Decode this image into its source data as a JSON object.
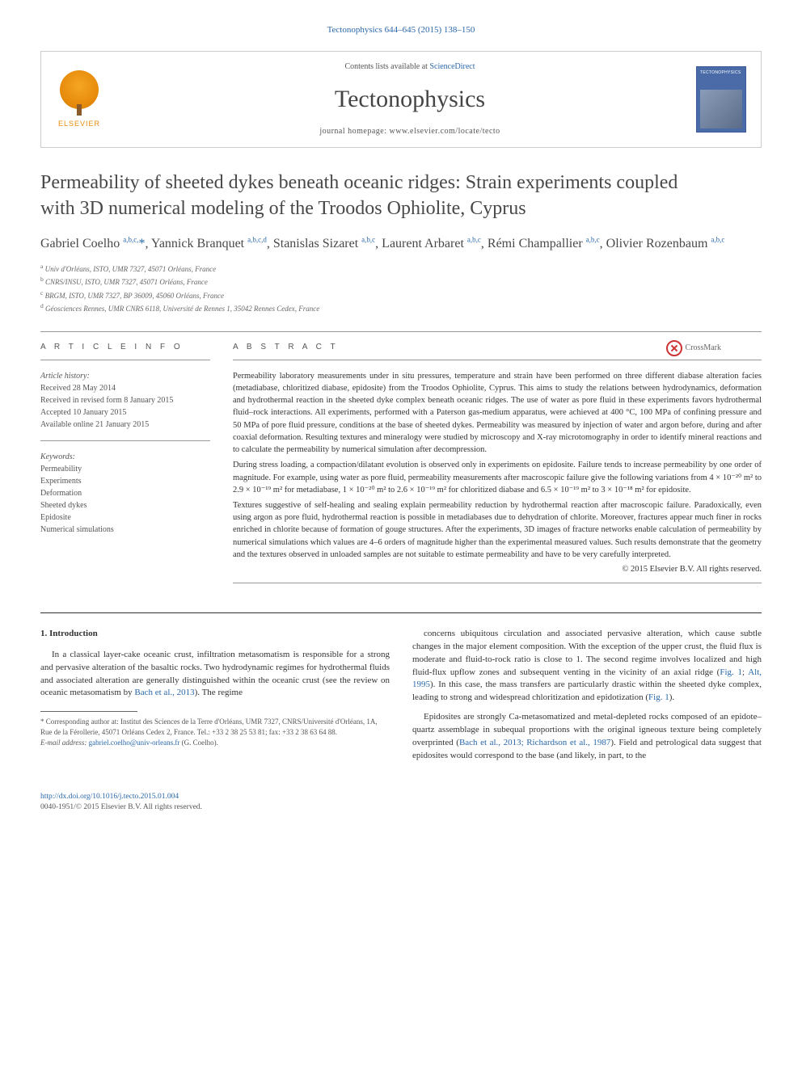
{
  "top_citation": "Tectonophysics 644–645 (2015) 138–150",
  "header": {
    "elsevier_label": "ELSEVIER",
    "contents_prefix": "Contents lists available at ",
    "contents_link": "ScienceDirect",
    "journal_name": "Tectonophysics",
    "homepage_prefix": "journal homepage: ",
    "homepage_url": "www.elsevier.com/locate/tecto",
    "cover_title": "TECTONOPHYSICS"
  },
  "crossmark_label": "CrossMark",
  "title": "Permeability of sheeted dykes beneath oceanic ridges: Strain experiments coupled with 3D numerical modeling of the Troodos Ophiolite, Cyprus",
  "authors_html": "Gabriel Coelho <sup>a,b,c,</sup><span class='star'>*</span>, Yannick Branquet <sup>a,b,c,d</sup>, Stanislas Sizaret <sup>a,b,c</sup>, Laurent Arbaret <sup>a,b,c</sup>, Rémi Champallier <sup>a,b,c</sup>, Olivier Rozenbaum <sup>a,b,c</sup>",
  "affiliations": [
    {
      "sup": "a",
      "text": "Univ d'Orléans, ISTO, UMR 7327, 45071 Orléans, France"
    },
    {
      "sup": "b",
      "text": "CNRS/INSU, ISTO, UMR 7327, 45071 Orléans, France"
    },
    {
      "sup": "c",
      "text": "BRGM, ISTO, UMR 7327, BP 36009, 45060 Orléans, France"
    },
    {
      "sup": "d",
      "text": "Géosciences Rennes, UMR CNRS 6118, Université de Rennes 1, 35042 Rennes Cedex, France"
    }
  ],
  "info": {
    "heading": "A R T I C L E   I N F O",
    "history_label": "Article history:",
    "history": [
      "Received 28 May 2014",
      "Received in revised form 8 January 2015",
      "Accepted 10 January 2015",
      "Available online 21 January 2015"
    ],
    "keywords_label": "Keywords:",
    "keywords": [
      "Permeability",
      "Experiments",
      "Deformation",
      "Sheeted dykes",
      "Epidosite",
      "Numerical simulations"
    ]
  },
  "abstract": {
    "heading": "A B S T R A C T",
    "paragraphs": [
      "Permeability laboratory measurements under in situ pressures, temperature and strain have been performed on three different diabase alteration facies (metadiabase, chloritized diabase, epidosite) from the Troodos Ophiolite, Cyprus. This aims to study the relations between hydrodynamics, deformation and hydrothermal reaction in the sheeted dyke complex beneath oceanic ridges. The use of water as pore fluid in these experiments favors hydrothermal fluid–rock interactions. All experiments, performed with a Paterson gas-medium apparatus, were achieved at 400 °C, 100 MPa of confining pressure and 50 MPa of pore fluid pressure, conditions at the base of sheeted dykes. Permeability was measured by injection of water and argon before, during and after coaxial deformation. Resulting textures and mineralogy were studied by microscopy and X-ray microtomography in order to identify mineral reactions and to calculate the permeability by numerical simulation after decompression.",
      "During stress loading, a compaction/dilatant evolution is observed only in experiments on epidosite. Failure tends to increase permeability by one order of magnitude. For example, using water as pore fluid, permeability measurements after macroscopic failure give the following variations from 4 × 10⁻²⁰ m² to 2.9 × 10⁻¹⁹ m² for metadiabase, 1 × 10⁻²⁰ m² to 2.6 × 10⁻¹⁹ m² for chloritized diabase and 6.5 × 10⁻¹⁹ m² to 3 × 10⁻¹⁸ m² for epidosite.",
      "Textures suggestive of self-healing and sealing explain permeability reduction by hydrothermal reaction after macroscopic failure. Paradoxically, even using argon as pore fluid, hydrothermal reaction is possible in metadiabases due to dehydration of chlorite. Moreover, fractures appear much finer in rocks enriched in chlorite because of formation of gouge structures. After the experiments, 3D images of fracture networks enable calculation of permeability by numerical simulations which values are 4–6 orders of magnitude higher than the experimental measured values. Such results demonstrate that the geometry and the textures observed in unloaded samples are not suitable to estimate permeability and have to be very carefully interpreted."
    ],
    "copyright": "© 2015 Elsevier B.V. All rights reserved."
  },
  "body": {
    "section_heading": "1. Introduction",
    "left_para": "In a classical layer-cake oceanic crust, infiltration metasomatism is responsible for a strong and pervasive alteration of the basaltic rocks. Two hydrodynamic regimes for hydrothermal fluids and associated alteration are generally distinguished within the oceanic crust (see the review on oceanic metasomatism by Bach et al., 2013). The regime",
    "right_para1": "concerns ubiquitous circulation and associated pervasive alteration, which cause subtle changes in the major element composition. With the exception of the upper crust, the fluid flux is moderate and fluid-to-rock ratio is close to 1. The second regime involves localized and high fluid-flux upflow zones and subsequent venting in the vicinity of an axial ridge (Fig. 1; Alt, 1995). In this case, the mass transfers are particularly drastic within the sheeted dyke complex, leading to strong and widespread chloritization and epidotization (Fig. 1).",
    "right_para2": "Epidosites are strongly Ca-metasomatized and metal-depleted rocks composed of an epidote–quartz assemblage in subequal proportions with the original igneous texture being completely overprinted (Bach et al., 2013; Richardson et al., 1987). Field and petrological data suggest that epidosites would correspond to the base (and likely, in part, to the"
  },
  "footnotes": {
    "corresponding": "* Corresponding author at: Institut des Sciences de la Terre d'Orléans, UMR 7327, CNRS/Université d'Orléans, 1A, Rue de la Férollerie, 45071 Orléans Cedex 2, France. Tel.: +33 2 38 25 53 81; fax: +33 2 38 63 64 88.",
    "email_label": "E-mail address:",
    "email": "gabriel.coelho@univ-orleans.fr",
    "email_suffix": "(G. Coelho)."
  },
  "footer": {
    "doi": "http://dx.doi.org/10.1016/j.tecto.2015.01.004",
    "issn_line": "0040-1951/© 2015 Elsevier B.V. All rights reserved."
  },
  "colors": {
    "link": "#2968aa",
    "text": "#333333",
    "muted": "#555555",
    "rule": "#999999",
    "elsevier_orange": "#e88c0c",
    "cover_blue": "#4a6ba8"
  }
}
